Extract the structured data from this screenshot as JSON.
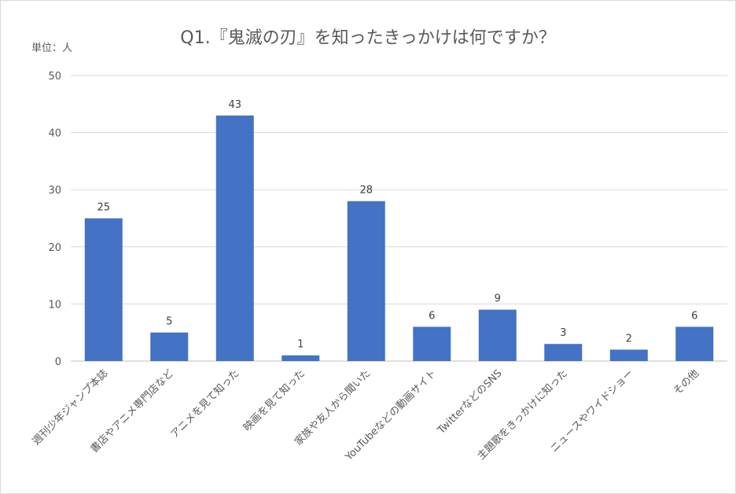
{
  "chart_data": {
    "type": "bar",
    "title": "Q1.『鬼滅の刃』を知ったきっかけは何ですか？",
    "unit_label": "単位：人",
    "categories": [
      "週刊少年ジャンプ本誌",
      "書店やアニメ専門店など",
      "アニメを見て知った",
      "映画を見て知った",
      "家族や友人から聞いた",
      "YouTubeなどの動画サイト",
      "TwitterなどのSNS",
      "主題歌をきっかけに知った",
      "ニュースやワイドショー",
      "その他"
    ],
    "values": [
      25,
      5,
      43,
      1,
      28,
      6,
      9,
      3,
      2,
      6
    ],
    "ylim": [
      0,
      50
    ],
    "yticks": [
      0,
      10,
      20,
      30,
      40,
      50
    ],
    "grid": true,
    "legend": "none",
    "bar_color": "#4472c4"
  }
}
